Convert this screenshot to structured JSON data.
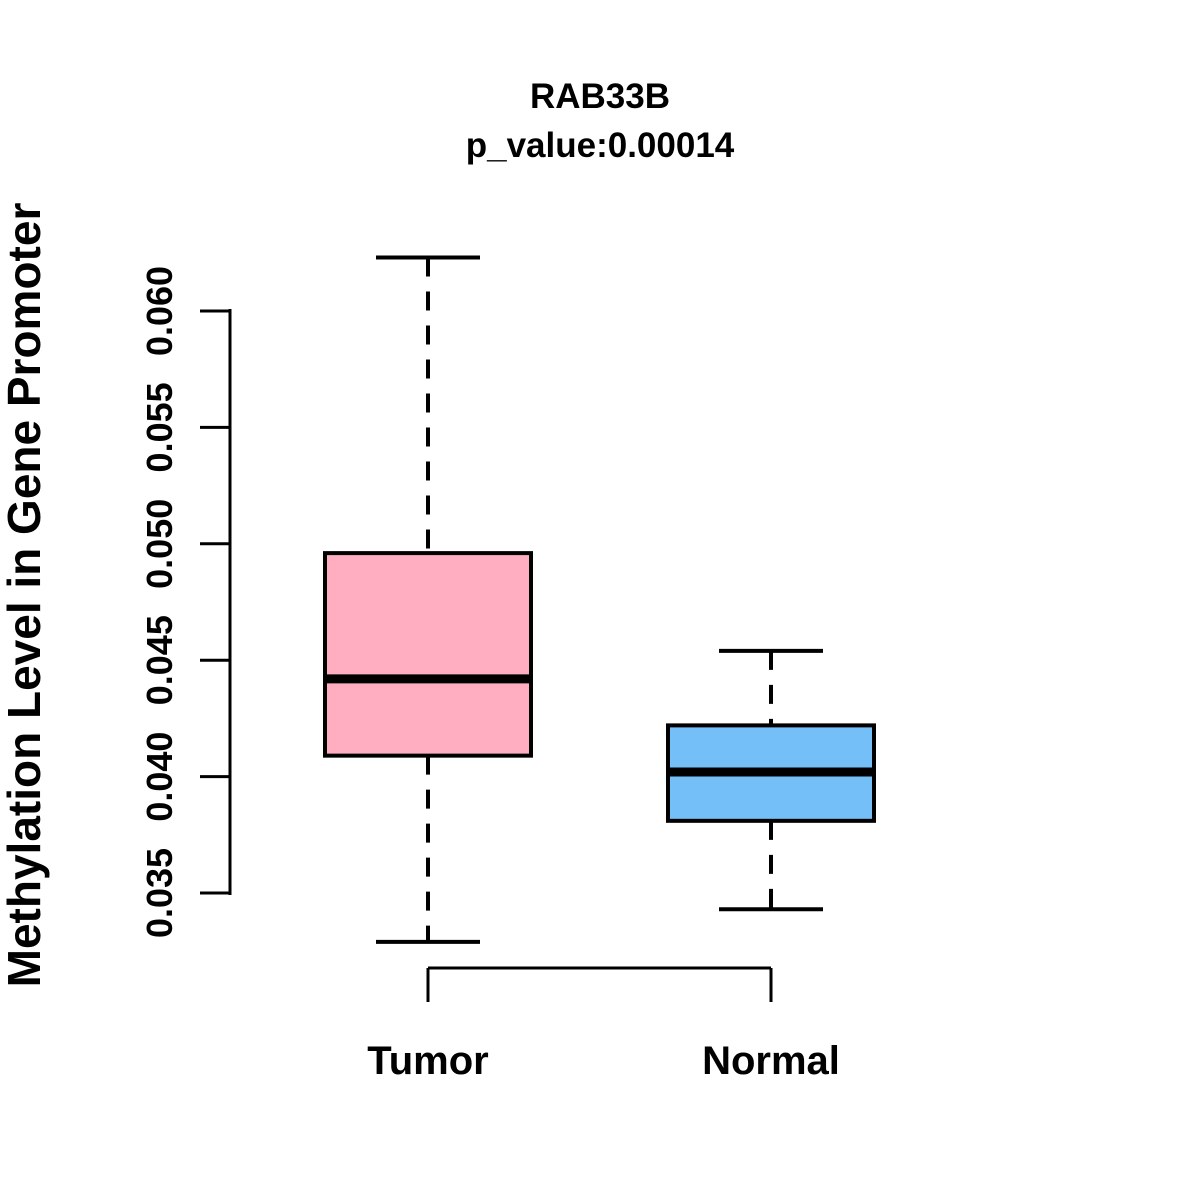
{
  "figure": {
    "background": "#FFFFFF",
    "text_color": "#000000"
  },
  "chart_data": {
    "type": "boxplot",
    "title": "RAB33B",
    "subtitle": "p_value:0.00014",
    "ylabel": "Methylation Level in Gene Promoter",
    "xlabel": "",
    "categories": [
      "Tumor",
      "Normal"
    ],
    "series": [
      {
        "name": "Tumor",
        "box_color": "#FFAEC2",
        "whisker_low": 0.0329,
        "q1": 0.0409,
        "median": 0.0442,
        "q3": 0.0496,
        "whisker_high": 0.0623
      },
      {
        "name": "Normal",
        "box_color": "#74BFF8",
        "whisker_low": 0.0343,
        "q1": 0.0381,
        "median": 0.0402,
        "q3": 0.0422,
        "whisker_high": 0.0454
      }
    ],
    "y_ticks": [
      0.035,
      0.04,
      0.045,
      0.05,
      0.055,
      0.06
    ],
    "y_tick_labels": [
      "0.035",
      "0.040",
      "0.045",
      "0.050",
      "0.055",
      "0.060"
    ],
    "ylim": [
      0.0329,
      0.0623
    ],
    "grid": false,
    "legend": "none",
    "stroke_color": "#000000"
  }
}
